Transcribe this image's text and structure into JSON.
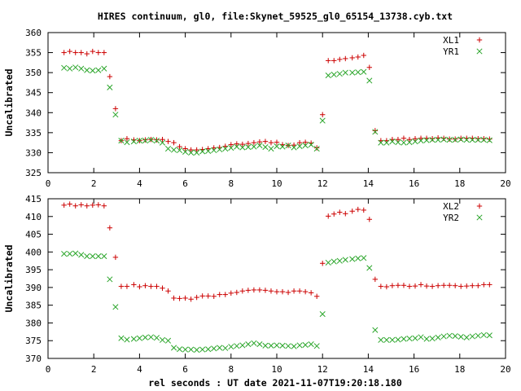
{
  "title": "HIRES continuum, gl0, file:Skynet_59525_gl0_65154_13738.cyb.txt",
  "colors": {
    "red": "#cc0000",
    "green": "#2aa52a"
  },
  "chart_data": [
    {
      "type": "scatter",
      "title": "HIRES continuum, gl0, file:Skynet_59525_gl0_65154_13738.cyb.txt",
      "xlabel": "",
      "ylabel": "Uncalibrated",
      "xlim": [
        0,
        20
      ],
      "ylim": [
        325,
        360
      ],
      "xticks": [
        0,
        2,
        4,
        6,
        8,
        10,
        12,
        14,
        16,
        18,
        20
      ],
      "yticks": [
        325,
        330,
        335,
        340,
        345,
        350,
        355,
        360
      ],
      "legend": "top-right",
      "grid": false,
      "series": [
        {
          "name": "XL1",
          "marker": "plus",
          "color": "#cc0000",
          "x": [
            0.7,
            0.95,
            1.2,
            1.45,
            1.7,
            1.95,
            2.2,
            2.45,
            2.7,
            2.95,
            3.2,
            3.45,
            3.75,
            4.0,
            4.25,
            4.5,
            4.75,
            5.0,
            5.25,
            5.5,
            5.75,
            6.0,
            6.25,
            6.5,
            6.75,
            7.0,
            7.25,
            7.5,
            7.75,
            8.0,
            8.25,
            8.5,
            8.75,
            9.0,
            9.25,
            9.5,
            9.75,
            10.0,
            10.25,
            10.5,
            10.75,
            11.0,
            11.25,
            11.5,
            11.75,
            12.0,
            12.25,
            12.5,
            12.75,
            13.0,
            13.3,
            13.55,
            13.8,
            14.05,
            14.3,
            14.55,
            14.8,
            15.05,
            15.3,
            15.55,
            15.8,
            16.05,
            16.3,
            16.55,
            16.8,
            17.05,
            17.3,
            17.55,
            17.8,
            18.05,
            18.3,
            18.55,
            18.8,
            19.05,
            19.3
          ],
          "y": [
            355,
            355.3,
            355,
            355,
            354.7,
            355.3,
            355,
            355,
            349,
            341,
            333,
            333.5,
            333.2,
            333,
            333.2,
            333.3,
            333.2,
            333.3,
            332.8,
            332.5,
            331.5,
            331,
            330.7,
            330.7,
            330.8,
            331.0,
            331.2,
            331.3,
            331.6,
            332.0,
            332.2,
            332.1,
            332.3,
            332.5,
            332.7,
            332.8,
            332.5,
            332.6,
            332.0,
            331.8,
            331.9,
            332.5,
            332.6,
            332.4,
            331.2,
            339.5,
            353,
            353,
            353.3,
            353.5,
            353.7,
            353.9,
            354.3,
            351.3,
            335.5,
            333.0,
            333.0,
            333.3,
            333.3,
            333.6,
            333.3,
            333.5,
            333.6,
            333.6,
            333.5,
            333.7,
            333.6,
            333.4,
            333.4,
            333.6,
            333.6,
            333.6,
            333.5,
            333.5,
            333.4
          ]
        },
        {
          "name": "YR1",
          "marker": "cross",
          "color": "#2aa52a",
          "x": [
            0.7,
            0.95,
            1.2,
            1.45,
            1.7,
            1.95,
            2.2,
            2.45,
            2.7,
            2.95,
            3.2,
            3.45,
            3.75,
            4.0,
            4.25,
            4.5,
            4.75,
            5.0,
            5.25,
            5.5,
            5.75,
            6.0,
            6.25,
            6.5,
            6.75,
            7.0,
            7.25,
            7.5,
            7.75,
            8.0,
            8.25,
            8.5,
            8.75,
            9.0,
            9.25,
            9.5,
            9.75,
            10.0,
            10.25,
            10.5,
            10.75,
            11.0,
            11.25,
            11.5,
            11.75,
            12.0,
            12.25,
            12.5,
            12.75,
            13.0,
            13.3,
            13.55,
            13.8,
            14.05,
            14.3,
            14.55,
            14.8,
            15.05,
            15.3,
            15.55,
            15.8,
            16.05,
            16.3,
            16.55,
            16.8,
            17.05,
            17.3,
            17.55,
            17.8,
            18.05,
            18.3,
            18.55,
            18.8,
            19.05,
            19.3
          ],
          "y": [
            351.2,
            351,
            351.3,
            351,
            350.6,
            350.5,
            350.6,
            351,
            346.3,
            339.5,
            333,
            332.6,
            332.8,
            333,
            333,
            333.2,
            333,
            332.5,
            331.0,
            330.7,
            330.6,
            330.2,
            330.0,
            330.0,
            330.3,
            330.4,
            330.6,
            330.8,
            331.0,
            331.2,
            331.5,
            331.3,
            331.4,
            331.5,
            331.8,
            331.4,
            331.0,
            331.6,
            331.5,
            331.8,
            331.3,
            331.6,
            331.8,
            332.0,
            331.0,
            338.0,
            349.3,
            349.5,
            349.7,
            350,
            350,
            350.1,
            350.2,
            348,
            335.2,
            332.5,
            332.5,
            332.8,
            332.6,
            332.5,
            332.6,
            332.8,
            333.0,
            333.1,
            333.2,
            333.2,
            333.3,
            333.2,
            333.2,
            333.3,
            333.2,
            333.2,
            333.2,
            333.2,
            333.1
          ]
        }
      ]
    },
    {
      "type": "scatter",
      "xlabel": "rel seconds : UT date 2021-11-07T19:20:18.180",
      "ylabel": "Uncalibrated",
      "xlim": [
        0,
        20
      ],
      "ylim": [
        370,
        415
      ],
      "xticks": [
        0,
        2,
        4,
        6,
        8,
        10,
        12,
        14,
        16,
        18,
        20
      ],
      "yticks": [
        370,
        375,
        380,
        385,
        390,
        395,
        400,
        405,
        410,
        415
      ],
      "legend": "top-right",
      "grid": false,
      "series": [
        {
          "name": "XL2",
          "marker": "plus",
          "color": "#cc0000",
          "x": [
            0.7,
            0.95,
            1.2,
            1.45,
            1.7,
            1.95,
            2.2,
            2.45,
            2.7,
            2.95,
            3.2,
            3.45,
            3.75,
            4.0,
            4.25,
            4.5,
            4.75,
            5.0,
            5.25,
            5.5,
            5.75,
            6.0,
            6.25,
            6.5,
            6.75,
            7.0,
            7.25,
            7.5,
            7.75,
            8.0,
            8.25,
            8.5,
            8.75,
            9.0,
            9.25,
            9.5,
            9.75,
            10.0,
            10.25,
            10.5,
            10.75,
            11.0,
            11.25,
            11.5,
            11.75,
            12.0,
            12.25,
            12.5,
            12.75,
            13.0,
            13.3,
            13.55,
            13.8,
            14.05,
            14.3,
            14.55,
            14.8,
            15.05,
            15.3,
            15.55,
            15.8,
            16.05,
            16.3,
            16.55,
            16.8,
            17.05,
            17.3,
            17.55,
            17.8,
            18.05,
            18.3,
            18.55,
            18.8,
            19.05,
            19.3
          ],
          "y": [
            413.2,
            413.5,
            413,
            413.3,
            413,
            413.2,
            413.3,
            413,
            406.8,
            398.5,
            390.3,
            390.3,
            390.8,
            390.2,
            390.5,
            390.3,
            390.3,
            389.8,
            389.0,
            387.0,
            386.9,
            387.0,
            386.7,
            387.2,
            387.6,
            387.6,
            387.5,
            388.0,
            388.0,
            388.4,
            388.6,
            389.0,
            389.2,
            389.3,
            389.3,
            389.2,
            389.0,
            388.8,
            388.8,
            388.6,
            389.0,
            389.0,
            388.8,
            388.5,
            387.5,
            396.8,
            410.1,
            410.7,
            411.2,
            410.8,
            411.5,
            412.0,
            411.8,
            409.2,
            392.3,
            390.3,
            390.2,
            390.5,
            390.6,
            390.6,
            390.3,
            390.4,
            390.8,
            390.4,
            390.3,
            390.5,
            390.6,
            390.6,
            390.5,
            390.3,
            390.4,
            390.5,
            390.5,
            390.8,
            390.8
          ]
        },
        {
          "name": "YR2",
          "marker": "cross",
          "color": "#2aa52a",
          "x": [
            0.7,
            0.95,
            1.2,
            1.45,
            1.7,
            1.95,
            2.2,
            2.45,
            2.7,
            2.95,
            3.2,
            3.45,
            3.75,
            4.0,
            4.25,
            4.5,
            4.75,
            5.0,
            5.25,
            5.5,
            5.75,
            6.0,
            6.25,
            6.5,
            6.75,
            7.0,
            7.25,
            7.5,
            7.75,
            8.0,
            8.25,
            8.5,
            8.75,
            9.0,
            9.25,
            9.5,
            9.75,
            10.0,
            10.25,
            10.5,
            10.75,
            11.0,
            11.25,
            11.5,
            11.75,
            12.0,
            12.25,
            12.5,
            12.75,
            13.0,
            13.3,
            13.55,
            13.8,
            14.05,
            14.3,
            14.55,
            14.8,
            15.05,
            15.3,
            15.55,
            15.8,
            16.05,
            16.3,
            16.55,
            16.8,
            17.05,
            17.3,
            17.55,
            17.8,
            18.05,
            18.3,
            18.55,
            18.8,
            19.05,
            19.3
          ],
          "y": [
            399.5,
            399.5,
            399.6,
            399.2,
            398.8,
            398.8,
            398.8,
            398.8,
            392.3,
            384.5,
            375.7,
            375.3,
            375.5,
            375.7,
            375.9,
            376.0,
            375.8,
            375.2,
            375.0,
            373.0,
            372.6,
            372.5,
            372.5,
            372.4,
            372.5,
            372.6,
            372.8,
            373.0,
            372.9,
            373.3,
            373.5,
            373.7,
            374.0,
            374.3,
            374.0,
            373.6,
            373.6,
            373.7,
            373.6,
            373.5,
            373.4,
            373.7,
            373.8,
            374.0,
            373.5,
            382.5,
            397.0,
            397.3,
            397.5,
            397.8,
            398.0,
            398.2,
            398.3,
            395.5,
            378.0,
            375.2,
            375.2,
            375.2,
            375.3,
            375.5,
            375.6,
            375.7,
            376.0,
            375.5,
            375.6,
            375.9,
            376.2,
            376.4,
            376.3,
            376.1,
            375.9,
            376.2,
            376.4,
            376.6,
            376.5
          ]
        }
      ]
    }
  ]
}
